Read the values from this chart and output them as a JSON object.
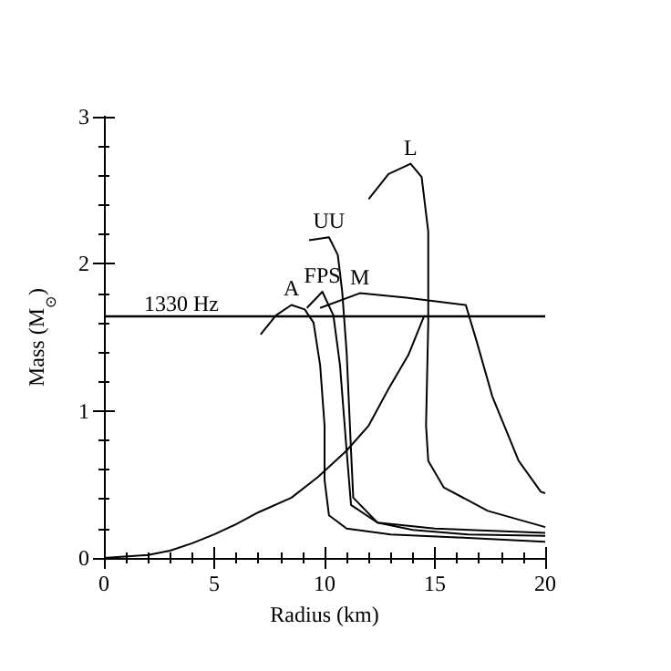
{
  "chart_data": {
    "type": "line",
    "xlabel": "Radius (km)",
    "ylabel": "Mass (M$_{⊙}$)",
    "xlim": [
      0,
      20
    ],
    "ylim": [
      0,
      3
    ],
    "xticks": [
      0,
      5,
      10,
      15,
      20
    ],
    "yticks": [
      0,
      1,
      2,
      3
    ],
    "grid": false,
    "marker": "none",
    "line_style": "solid",
    "series": [
      {
        "color": "#000000",
        "x": [
          0,
          2,
          3,
          4,
          5,
          6,
          7,
          8.5,
          9.7,
          11,
          12,
          12.9,
          13.8,
          14.5
        ],
        "values": [
          0,
          0.02,
          0.05,
          0.1,
          0.16,
          0.23,
          0.31,
          0.41,
          0.55,
          0.73,
          0.9,
          1.15,
          1.38,
          1.64
        ]
      },
      {
        "name": "A",
        "color": "#000000",
        "x": [
          7.1,
          7.8,
          8.5,
          9.1,
          9.5,
          9.8,
          10,
          10,
          10.2,
          11,
          13,
          16,
          20
        ],
        "values": [
          1.52,
          1.65,
          1.72,
          1.69,
          1.6,
          1.31,
          0.9,
          0.53,
          0.29,
          0.2,
          0.16,
          0.14,
          0.11
        ]
      },
      {
        "name": "FPS",
        "color": "#000000",
        "x": [
          9.2,
          9.9,
          10.4,
          10.7,
          11,
          11.2,
          12.4,
          14,
          16.5,
          20
        ],
        "values": [
          1.7,
          1.81,
          1.65,
          1.31,
          0.73,
          0.36,
          0.24,
          0.19,
          0.16,
          0.15
        ]
      },
      {
        "name": "UU",
        "color": "#000000",
        "x": [
          9.3,
          10.2,
          10.6,
          10.8,
          11,
          11.2,
          11.3,
          12.4,
          15,
          20
        ],
        "values": [
          2.16,
          2.18,
          2.06,
          1.81,
          1.4,
          0.73,
          0.41,
          0.24,
          0.2,
          0.17
        ]
      },
      {
        "name": "L",
        "color": "#000000",
        "x": [
          12,
          12.9,
          13.9,
          14.4,
          14.7,
          14.7,
          14.6,
          14.7,
          15.4,
          17.4,
          20
        ],
        "values": [
          2.44,
          2.61,
          2.68,
          2.59,
          2.22,
          1.6,
          0.9,
          0.66,
          0.48,
          0.32,
          0.21
        ]
      },
      {
        "name": "M",
        "color": "#000000",
        "x": [
          9.8,
          11.6,
          13.7,
          16.4,
          16.9,
          17.6,
          18.8,
          19.8,
          20
        ],
        "values": [
          1.7,
          1.8,
          1.77,
          1.72,
          1.47,
          1.1,
          0.66,
          0.45,
          0.44
        ]
      }
    ],
    "ref_lines": [
      {
        "axis": "y",
        "value": 1.64,
        "label": "1330 Hz",
        "color": "#000000"
      }
    ]
  }
}
